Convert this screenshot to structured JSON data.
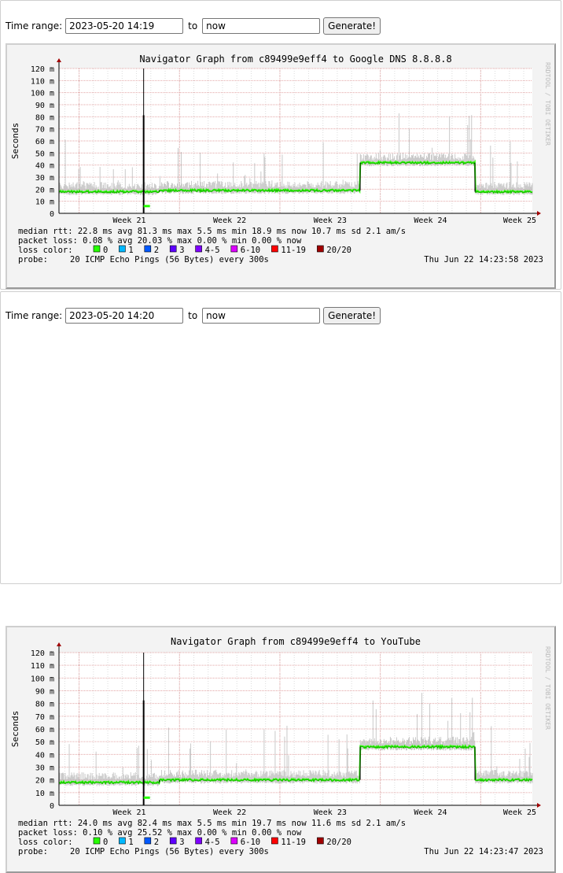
{
  "panels": [
    {
      "controls": {
        "time_range_label": "Time range:",
        "from_value": "2023-05-20 14:19",
        "to_label": "to",
        "until_value": "now",
        "generate_label": "Generate!"
      },
      "graph": {
        "title": "Navigator Graph from c89499e9eff4 to Google DNS 8.8.8.8",
        "ylabel": "Seconds",
        "watermark": "RRDTOOL / TOBI OETIKER",
        "stats": [
          "median rtt:  22.8 ms avg  81.3 ms max  5.5 ms min  18.9 ms now  10.7 ms sd  2.1   am/s",
          "packet loss: 0.08 % avg  20.03 % max  0.00 % min  0.00 % now"
        ],
        "loss_label": "loss color:",
        "probe_label": "probe:",
        "probe_text": "20 ICMP Echo Pings (56 Bytes) every 300s",
        "timestamp": "Thu Jun 22 14:23:58 2023",
        "chart_data": {
          "type": "line",
          "title": "Navigator Graph from c89499e9eff4 to Google DNS 8.8.8.8",
          "ylabel": "Seconds",
          "ylim": [
            0,
            120
          ],
          "y_unit": "ms",
          "yticks": [
            "0",
            "10 m",
            "20 m",
            "30 m",
            "40 m",
            "50 m",
            "60 m",
            "70 m",
            "80 m",
            "90 m",
            "100 m",
            "110 m",
            "120 m"
          ],
          "xticks": [
            "Week 21",
            "Week 22",
            "Week 23",
            "Week 24",
            "Week 25"
          ],
          "grid": true,
          "median_segments": [
            {
              "from": "2023-05-20",
              "to": "2023-05-27",
              "value_ms": 18
            },
            {
              "from": "2023-05-27",
              "to": "2023-06-10",
              "value_ms": 19
            },
            {
              "from": "2023-06-10",
              "to": "2023-06-18",
              "value_ms": 42
            },
            {
              "from": "2023-06-18",
              "to": "2023-06-22",
              "value_ms": 18
            }
          ],
          "spike": {
            "date": "2023-05-26",
            "value_ms": 81.3
          }
        }
      }
    },
    {
      "controls": {
        "time_range_label": "Time range:",
        "from_value": "2023-05-20 14:20",
        "to_label": "to",
        "until_value": "now",
        "generate_label": "Generate!"
      },
      "graph": {
        "title": "Navigator Graph from c89499e9eff4 to YouTube",
        "ylabel": "Seconds",
        "watermark": "RRDTOOL / TOBI OETIKER",
        "stats": [
          "median rtt:  24.0 ms avg  82.4 ms max  5.5 ms min  19.7 ms now  11.6 ms sd  2.1   am/s",
          "packet loss: 0.10 % avg  25.52 % max  0.00 % min  0.00 % now"
        ],
        "loss_label": "loss color:",
        "probe_label": "probe:",
        "probe_text": "20 ICMP Echo Pings (56 Bytes) every 300s",
        "timestamp": "Thu Jun 22 14:23:47 2023",
        "chart_data": {
          "type": "line",
          "title": "Navigator Graph from c89499e9eff4 to YouTube",
          "ylabel": "Seconds",
          "ylim": [
            0,
            120
          ],
          "y_unit": "ms",
          "yticks": [
            "0",
            "10 m",
            "20 m",
            "30 m",
            "40 m",
            "50 m",
            "60 m",
            "70 m",
            "80 m",
            "90 m",
            "100 m",
            "110 m",
            "120 m"
          ],
          "xticks": [
            "Week 21",
            "Week 22",
            "Week 23",
            "Week 24",
            "Week 25"
          ],
          "grid": true,
          "median_segments": [
            {
              "from": "2023-05-20",
              "to": "2023-05-27",
              "value_ms": 18
            },
            {
              "from": "2023-05-27",
              "to": "2023-06-10",
              "value_ms": 20
            },
            {
              "from": "2023-06-10",
              "to": "2023-06-18",
              "value_ms": 46
            },
            {
              "from": "2023-06-18",
              "to": "2023-06-22",
              "value_ms": 20
            }
          ],
          "spike": {
            "date": "2023-05-26",
            "value_ms": 82.4
          }
        }
      }
    }
  ],
  "loss_legend": [
    {
      "label": "0",
      "color": "#26ff00"
    },
    {
      "label": "1",
      "color": "#00b8ff"
    },
    {
      "label": "2",
      "color": "#0059ff"
    },
    {
      "label": "3",
      "color": "#5e00ff"
    },
    {
      "label": "4-5",
      "color": "#7e00ff"
    },
    {
      "label": "6-10",
      "color": "#dd00ff"
    },
    {
      "label": "11-19",
      "color": "#ff0000"
    },
    {
      "label": "20/20",
      "color": "#a10000"
    }
  ]
}
